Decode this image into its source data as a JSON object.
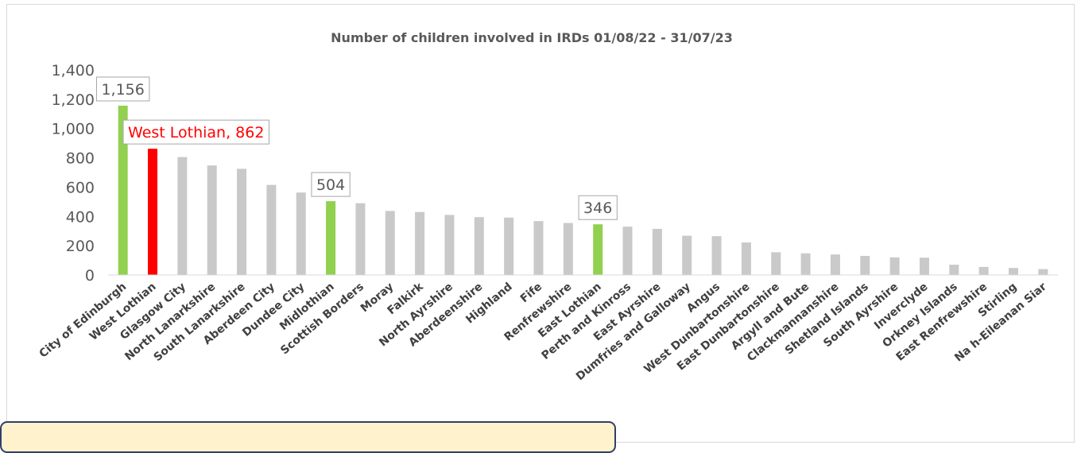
{
  "chart_data": {
    "type": "bar",
    "title": "Number of children involved in IRDs 01/08/22 - 31/07/23",
    "xlabel": "",
    "ylabel": "",
    "ylim": [
      0,
      1400
    ],
    "y_ticks": [
      0,
      200,
      400,
      600,
      800,
      1000,
      1200,
      1400
    ],
    "y_tick_labels": [
      "0",
      "200",
      "400",
      "600",
      "800",
      "1,000",
      "1,200",
      "1,400"
    ],
    "grid": false,
    "legend": "none",
    "categories": [
      "City of Edinburgh",
      "West Lothian",
      "Glasgow City",
      "North Lanarkshire",
      "South Lanarkshire",
      "Aberdeen City",
      "Dundee City",
      "Midlothian",
      "Scottish Borders",
      "Moray",
      "Falkirk",
      "North Ayrshire",
      "Aberdeenshire",
      "Highland",
      "Fife",
      "Renfrewshire",
      "East Lothian",
      "Perth and Kinross",
      "East Ayrshire",
      "Dumfries and Galloway",
      "Angus",
      "West Dunbartonshire",
      "East Dunbartonshire",
      "Argyll and Bute",
      "Clackmannanshire",
      "Shetland Islands",
      "South Ayrshire",
      "Inverclyde",
      "Orkney Islands",
      "East Renfrewshire",
      "Stirling",
      "Na h-Eileanan Siar"
    ],
    "values": [
      1156,
      862,
      805,
      748,
      725,
      615,
      563,
      504,
      490,
      437,
      430,
      410,
      395,
      392,
      368,
      355,
      346,
      330,
      315,
      268,
      265,
      222,
      155,
      148,
      140,
      130,
      120,
      118,
      70,
      55,
      48,
      40
    ],
    "bar_colors": [
      "#92d050",
      "#ff0000",
      "#c9c9c9",
      "#c9c9c9",
      "#c9c9c9",
      "#c9c9c9",
      "#c9c9c9",
      "#92d050",
      "#c9c9c9",
      "#c9c9c9",
      "#c9c9c9",
      "#c9c9c9",
      "#c9c9c9",
      "#c9c9c9",
      "#c9c9c9",
      "#c9c9c9",
      "#92d050",
      "#c9c9c9",
      "#c9c9c9",
      "#c9c9c9",
      "#c9c9c9",
      "#c9c9c9",
      "#c9c9c9",
      "#c9c9c9",
      "#c9c9c9",
      "#c9c9c9",
      "#c9c9c9",
      "#c9c9c9",
      "#c9c9c9",
      "#c9c9c9",
      "#c9c9c9",
      "#c9c9c9"
    ],
    "data_labels": [
      {
        "index": 0,
        "text": "1,156",
        "color": "#595959"
      },
      {
        "index": 1,
        "text": "West Lothian, 862",
        "color": "#ff0000"
      },
      {
        "index": 7,
        "text": "504",
        "color": "#595959"
      },
      {
        "index": 16,
        "text": "346",
        "color": "#595959"
      }
    ]
  },
  "colors": {
    "highlight": "#92d050",
    "focus": "#ff0000",
    "default_bar": "#c9c9c9",
    "note_fill": "#fff2cc",
    "note_border": "#2f3f6b"
  }
}
